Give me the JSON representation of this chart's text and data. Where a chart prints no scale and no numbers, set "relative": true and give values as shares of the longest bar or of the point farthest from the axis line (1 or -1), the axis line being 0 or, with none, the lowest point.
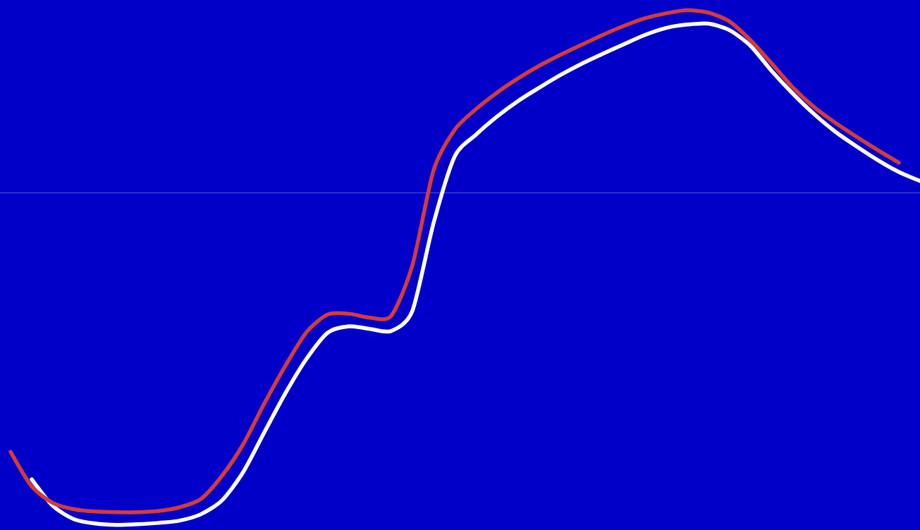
{
  "chart_data": {
    "type": "line",
    "relative": true,
    "ref_lines": [
      {
        "axis": "y",
        "value": 0,
        "color": "#7373e1"
      }
    ],
    "categories": [
      null,
      null,
      null,
      null,
      null,
      null,
      null,
      null,
      null,
      null,
      null,
      null,
      null,
      null,
      null,
      null,
      null,
      null,
      null,
      null,
      null,
      null,
      null,
      null,
      null,
      null,
      null,
      null,
      null,
      null,
      null,
      null,
      null,
      null,
      null,
      null,
      null,
      null,
      null,
      null,
      null,
      null,
      null,
      null
    ],
    "series": [
      {
        "color": "#ffffff",
        "values": [
          null,
          -0.863,
          -0.943,
          -0.983,
          -0.996,
          -1.0,
          -0.998,
          -0.994,
          -0.987,
          -0.968,
          -0.926,
          -0.841,
          -0.721,
          -0.603,
          -0.499,
          -0.421,
          -0.402,
          -0.41,
          -0.416,
          -0.355,
          -0.091,
          0.11,
          0.175,
          0.23,
          0.277,
          0.317,
          0.355,
          0.389,
          0.419,
          0.448,
          0.476,
          0.497,
          0.507,
          0.51,
          0.49,
          0.442,
          0.366,
          0.298,
          0.237,
          0.184,
          0.14,
          0.099,
          0.063,
          0.036
        ]
      },
      {
        "color": "#d23c3c",
        "values": [
          -0.78,
          -0.884,
          -0.934,
          -0.953,
          -0.96,
          -0.962,
          -0.962,
          -0.958,
          -0.947,
          -0.922,
          -0.852,
          -0.757,
          -0.634,
          -0.52,
          -0.419,
          -0.366,
          -0.364,
          -0.376,
          -0.37,
          -0.218,
          0.068,
          0.19,
          0.252,
          0.302,
          0.345,
          0.383,
          0.416,
          0.446,
          0.476,
          0.503,
          0.526,
          0.541,
          0.55,
          0.543,
          0.516,
          0.459,
          0.389,
          0.317,
          0.258,
          0.211,
          0.169,
          0.129,
          0.091,
          null
        ]
      }
    ]
  }
}
